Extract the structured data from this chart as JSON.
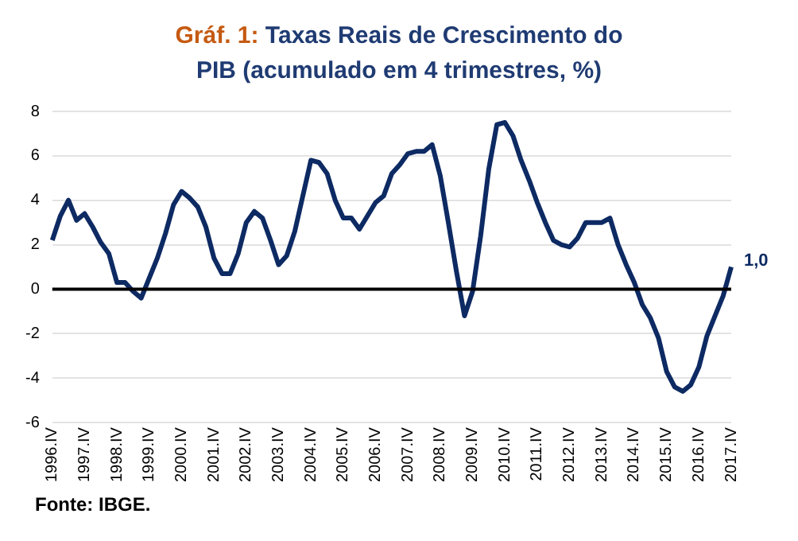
{
  "chart_data": {
    "type": "line",
    "title": "Gráf. 1: Taxas Reais de Crescimento do PIB (acumulado em 4 trimestres, %)",
    "categories": [
      "1996.IV",
      null,
      null,
      null,
      "1997.IV",
      null,
      null,
      null,
      "1998.IV",
      null,
      null,
      null,
      "1999.IV",
      null,
      null,
      null,
      "2000.IV",
      null,
      null,
      null,
      "2001.IV",
      null,
      null,
      null,
      "2002.IV",
      null,
      null,
      null,
      "2003.IV",
      null,
      null,
      null,
      "2004.IV",
      null,
      null,
      null,
      "2005.IV",
      null,
      null,
      null,
      "2006.IV",
      null,
      null,
      null,
      "2007.IV",
      null,
      null,
      null,
      "2008.IV",
      null,
      null,
      null,
      "2009.IV",
      null,
      null,
      null,
      "2010.IV",
      null,
      null,
      null,
      "2011.IV",
      null,
      null,
      null,
      "2012.IV",
      null,
      null,
      null,
      "2013.IV",
      null,
      null,
      null,
      "2014.IV",
      null,
      null,
      null,
      "2015.IV",
      null,
      null,
      null,
      "2016.IV",
      null,
      null,
      null,
      "2017.IV"
    ],
    "series": [
      {
        "color": "#0d2a63",
        "values": [
          2.2,
          3.3,
          4.0,
          3.1,
          3.4,
          2.8,
          2.1,
          1.6,
          0.3,
          0.3,
          -0.1,
          -0.4,
          0.5,
          1.4,
          2.5,
          3.8,
          4.4,
          4.1,
          3.7,
          2.8,
          1.4,
          0.7,
          0.7,
          1.6,
          3.0,
          3.5,
          3.2,
          2.2,
          1.1,
          1.5,
          2.6,
          4.2,
          5.8,
          5.7,
          5.2,
          4.0,
          3.2,
          3.2,
          2.7,
          3.3,
          3.9,
          4.2,
          5.2,
          5.6,
          6.1,
          6.2,
          6.2,
          6.5,
          5.1,
          3.0,
          0.8,
          -1.2,
          -0.1,
          2.4,
          5.4,
          7.4,
          7.5,
          6.9,
          5.8,
          4.9,
          3.9,
          3.0,
          2.2,
          2.0,
          1.9,
          2.3,
          3.0,
          3.0,
          3.0,
          3.2,
          2.0,
          1.1,
          0.3,
          -0.7,
          -1.3,
          -2.2,
          -3.7,
          -4.4,
          -4.6,
          -4.3,
          -3.5,
          -2.1,
          -1.2,
          -0.3,
          1.0
        ],
        "value_labels": [
          null,
          null,
          null,
          null,
          null,
          null,
          null,
          null,
          null,
          null,
          null,
          null,
          null,
          null,
          null,
          null,
          null,
          null,
          null,
          null,
          null,
          null,
          null,
          null,
          null,
          null,
          null,
          null,
          null,
          null,
          null,
          null,
          null,
          null,
          null,
          null,
          null,
          null,
          null,
          null,
          null,
          null,
          null,
          null,
          null,
          null,
          null,
          null,
          null,
          null,
          null,
          null,
          null,
          null,
          null,
          null,
          null,
          null,
          null,
          null,
          null,
          null,
          null,
          null,
          null,
          null,
          null,
          null,
          null,
          null,
          null,
          null,
          null,
          null,
          null,
          null,
          null,
          null,
          null,
          null,
          null,
          null,
          null,
          null,
          "1,0"
        ]
      }
    ],
    "ylim": [
      -6,
      8
    ],
    "yticks": [
      -6,
      -4,
      -2,
      0,
      2,
      4,
      6,
      8
    ],
    "grid": "y",
    "legend": false,
    "marker": "none",
    "line_style": "solid",
    "ref_lines": [
      {
        "axis": "y",
        "value": 0,
        "color": "#000000"
      }
    ],
    "annotations": [
      "Fonte: IBGE."
    ]
  }
}
